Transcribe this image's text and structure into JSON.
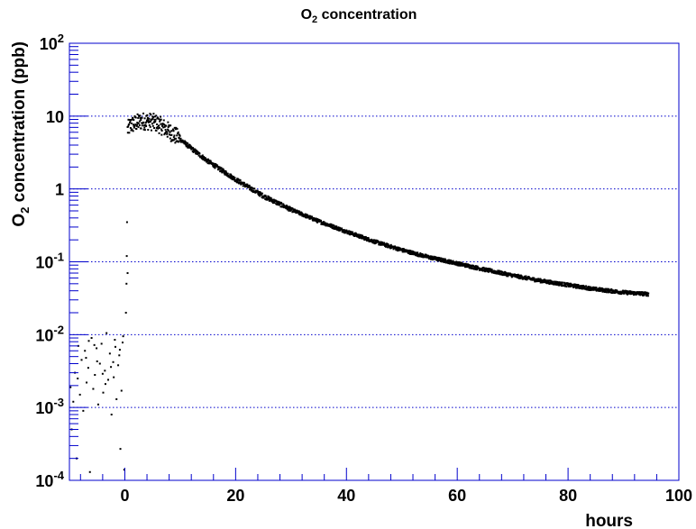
{
  "chart_data": {
    "type": "scatter",
    "title": {
      "main": "O",
      "sub": "2",
      "rest": " concentration"
    },
    "xlabel": "hours",
    "ylabel": {
      "main": "O",
      "sub": "2",
      "rest": " concentration (ppb)"
    },
    "xlim": [
      -10,
      100
    ],
    "ylim": [
      0.0001,
      100
    ],
    "yscale": "log",
    "x_ticks": [
      {
        "value": 0,
        "label": "0"
      },
      {
        "value": 20,
        "label": "20"
      },
      {
        "value": 40,
        "label": "40"
      },
      {
        "value": 60,
        "label": "60"
      },
      {
        "value": 80,
        "label": "80"
      },
      {
        "value": 100,
        "label": "100"
      }
    ],
    "y_ticks": [
      {
        "value": 0.0001,
        "base": "10",
        "exp": "-4"
      },
      {
        "value": 0.001,
        "base": "10",
        "exp": "-3"
      },
      {
        "value": 0.01,
        "base": "10",
        "exp": "-2"
      },
      {
        "value": 0.1,
        "base": "10",
        "exp": "-1"
      },
      {
        "value": 1,
        "base": "1",
        "exp": ""
      },
      {
        "value": 10,
        "base": "10",
        "exp": ""
      },
      {
        "value": 100,
        "base": "10",
        "exp": "2"
      }
    ],
    "y_gridlines": [
      0.001,
      0.01,
      0.1,
      1,
      10
    ],
    "grid": "horizontal dotted",
    "frame_color": "#0000cc",
    "grid_color": "#0000cc",
    "marker_color": "#000000",
    "series": [
      {
        "points": [
          [
            -9.6,
            0.0005
          ],
          [
            -9.3,
            0.0012
          ],
          [
            -9.0,
            0.003
          ],
          [
            -8.7,
            0.0002
          ],
          [
            -8.4,
            0.007
          ],
          [
            -8.1,
            0.0015
          ],
          [
            -7.8,
            0.0045
          ],
          [
            -7.5,
            0.0009
          ],
          [
            -7.2,
            0.006
          ],
          [
            -6.9,
            0.0022
          ],
          [
            -6.6,
            0.0035
          ],
          [
            -6.3,
            0.00013
          ],
          [
            -6.0,
            0.009
          ],
          [
            -5.7,
            0.0018
          ],
          [
            -5.4,
            0.0028
          ],
          [
            -5.1,
            0.0065
          ],
          [
            -4.8,
            0.0011
          ],
          [
            -4.5,
            0.004
          ],
          [
            -4.2,
            0.0075
          ],
          [
            -3.9,
            0.0016
          ],
          [
            -3.6,
            0.0032
          ],
          [
            -3.3,
            0.0105
          ],
          [
            -3.0,
            0.0024
          ],
          [
            -2.7,
            0.0055
          ],
          [
            -2.4,
            0.0008
          ],
          [
            -2.1,
            0.0042
          ],
          [
            -1.8,
            0.0085
          ],
          [
            -1.5,
            0.0013
          ],
          [
            -1.2,
            0.0038
          ],
          [
            -0.9,
            0.0062
          ],
          [
            -0.6,
            0.0017
          ],
          [
            -0.3,
            0.0095
          ],
          [
            -8.5,
            0.0025
          ],
          [
            -7.0,
            0.0048
          ],
          [
            -5.5,
            0.0072
          ],
          [
            -4.0,
            0.0029
          ],
          [
            -2.5,
            0.0036
          ],
          [
            -1.0,
            0.0052
          ],
          [
            -9.8,
            0.0019
          ],
          [
            -6.5,
            0.0082
          ],
          [
            -3.5,
            0.0021
          ],
          [
            -1.7,
            0.0068
          ],
          [
            -0.8,
            0.00027
          ],
          [
            -0.4,
            0.0078
          ],
          [
            -5.0,
            0.0043
          ],
          [
            -2.0,
            0.0026
          ],
          [
            -0.1,
            0.00014
          ],
          [
            0.2,
            0.02
          ],
          [
            0.3,
            0.05
          ],
          [
            0.35,
            0.12
          ],
          [
            0.4,
            0.35
          ],
          [
            0.5,
            0.07
          ]
        ],
        "curve": [
          [
            0.5,
            6.5
          ],
          [
            1,
            7.5
          ],
          [
            2,
            8.0
          ],
          [
            3,
            8.5
          ],
          [
            4,
            8.5
          ],
          [
            5,
            8.3
          ],
          [
            6,
            7.8
          ],
          [
            7,
            7.0
          ],
          [
            8,
            6.2
          ],
          [
            10,
            4.8
          ],
          [
            12,
            3.6
          ],
          [
            15,
            2.4
          ],
          [
            18,
            1.7
          ],
          [
            20,
            1.35
          ],
          [
            25,
            0.8
          ],
          [
            30,
            0.52
          ],
          [
            35,
            0.36
          ],
          [
            40,
            0.26
          ],
          [
            45,
            0.19
          ],
          [
            50,
            0.145
          ],
          [
            55,
            0.115
          ],
          [
            60,
            0.095
          ],
          [
            65,
            0.078
          ],
          [
            70,
            0.065
          ],
          [
            75,
            0.055
          ],
          [
            80,
            0.048
          ],
          [
            85,
            0.042
          ],
          [
            90,
            0.038
          ],
          [
            94.5,
            0.036
          ]
        ]
      }
    ]
  }
}
